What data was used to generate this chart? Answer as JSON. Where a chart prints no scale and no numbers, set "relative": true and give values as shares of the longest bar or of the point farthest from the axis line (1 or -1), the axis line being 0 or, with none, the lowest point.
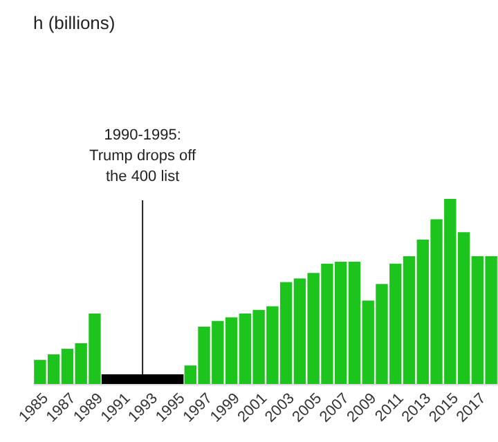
{
  "chart_data": {
    "type": "bar",
    "title": "h (billions)",
    "relative": true,
    "color": "#1dc41d",
    "categories": [
      "1985",
      null,
      "1987",
      null,
      "1989",
      null,
      "1991",
      null,
      "1993",
      null,
      "1995",
      null,
      "1997",
      null,
      "1999",
      null,
      "2001",
      null,
      "2003",
      null,
      "2005",
      null,
      "2007",
      null,
      "2009",
      null,
      "2011",
      null,
      "2013",
      null,
      "2015",
      null,
      "2017",
      null
    ],
    "values": [
      0.13,
      0.16,
      0.19,
      0.22,
      0.38,
      null,
      null,
      null,
      null,
      null,
      null,
      0.1,
      0.31,
      0.34,
      0.36,
      0.38,
      0.4,
      0.42,
      0.55,
      0.57,
      0.6,
      0.65,
      0.66,
      0.66,
      0.45,
      0.54,
      0.65,
      0.69,
      0.78,
      0.89,
      1,
      0.82,
      0.69,
      0.69
    ],
    "annotations": [
      "1990-1995:\nTrump drops off\nthe 400 list"
    ]
  }
}
